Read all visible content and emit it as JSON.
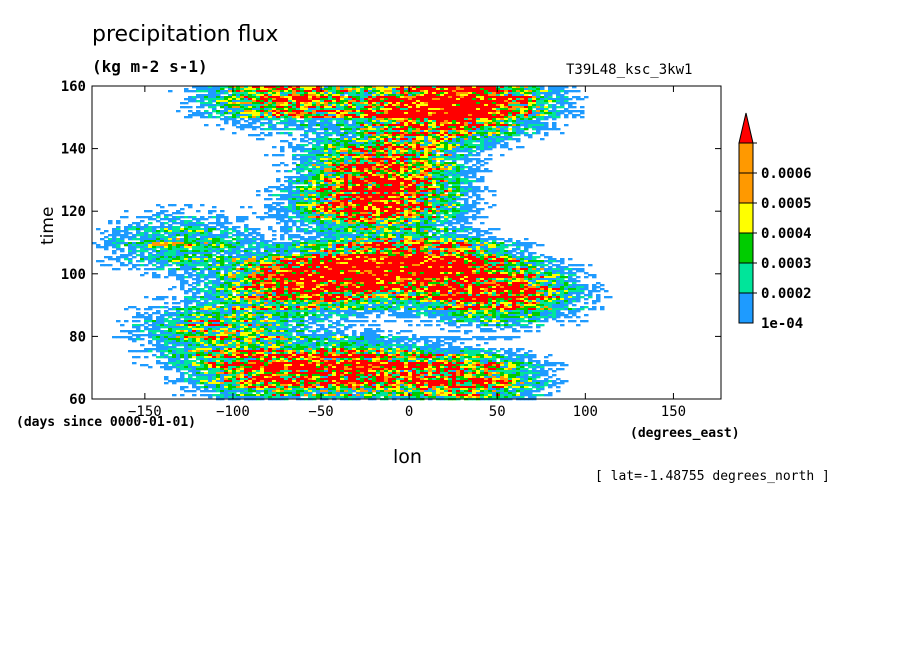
{
  "title": "precipitation flux",
  "units": "(kg m-2 s-1)",
  "run_id": "T39L48_ksc_3kw1",
  "xlabel": "lon",
  "ylabel": "time",
  "time_units": "(days since 0000-01-01)",
  "lon_units": "(degrees_east)",
  "lat_note": "[ lat=-1.48755 degrees_north ]",
  "chart_data": {
    "type": "heatmap",
    "title": "precipitation flux",
    "xlabel": "lon",
    "ylabel": "time",
    "xlim": [
      -180,
      177
    ],
    "ylim": [
      60,
      160
    ],
    "x_ticks": [
      -150,
      -100,
      -50,
      0,
      50,
      100,
      150
    ],
    "y_ticks": [
      60,
      80,
      100,
      120,
      140,
      160
    ],
    "colorbar": {
      "levels": [
        "1e-04",
        "0.0002",
        "0.0003",
        "0.0004",
        "0.0005",
        "0.0006"
      ],
      "colors": [
        "#1e9bff",
        "#00e59a",
        "#00cc00",
        "#ffff00",
        "#ff9900",
        "#ff0000"
      ],
      "extend": "max"
    },
    "features": [
      {
        "lon": -65,
        "time": 97,
        "value": 0.0007
      },
      {
        "lon": -25,
        "time": 101,
        "value": 0.0007
      },
      {
        "lon": 15,
        "time": 103,
        "value": 0.0007
      },
      {
        "lon": 50,
        "time": 94,
        "value": 0.0007
      },
      {
        "lon": -20,
        "time": 122,
        "value": 0.0007
      },
      {
        "lon": -15,
        "time": 134,
        "value": 0.0007
      },
      {
        "lon": 10,
        "time": 152,
        "value": 0.0007
      },
      {
        "lon": 35,
        "time": 155,
        "value": 0.0007
      },
      {
        "lon": -70,
        "time": 157,
        "value": 0.0006
      },
      {
        "lon": -80,
        "time": 69,
        "value": 0.0006
      },
      {
        "lon": -30,
        "time": 70,
        "value": 0.0006
      },
      {
        "lon": 30,
        "time": 66,
        "value": 0.0006
      },
      {
        "lon": -110,
        "time": 82,
        "value": 0.0004
      },
      {
        "lon": -130,
        "time": 110,
        "value": 0.0003
      }
    ]
  }
}
